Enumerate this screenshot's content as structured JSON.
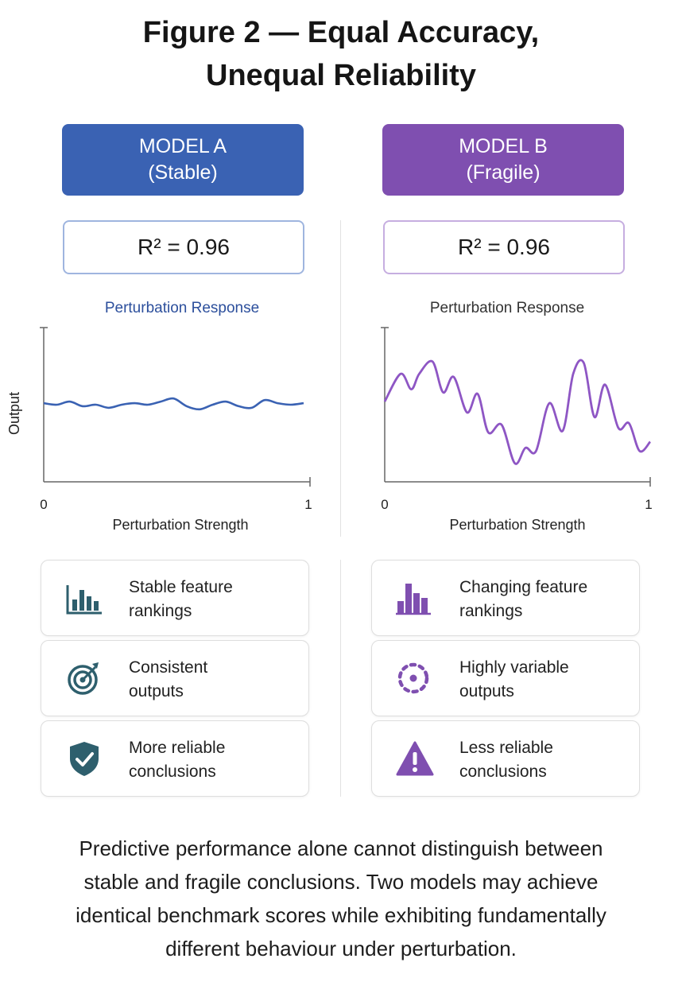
{
  "title": {
    "line1": "Figure 2 — Equal Accuracy,",
    "line2": "Unequal Reliability"
  },
  "colors": {
    "model_a": "#3a62b3",
    "model_b": "#7f4fb0",
    "icon_a": "#2e5f6d",
    "icon_b": "#7f4fb0"
  },
  "model_a": {
    "header_line1": "MODEL A",
    "header_line2": "(Stable)",
    "score": "R² = 0.96",
    "features": [
      {
        "icon": "bar-chart-icon",
        "line1": "Stable feature",
        "line2": "rankings"
      },
      {
        "icon": "target-icon",
        "line1": "Consistent",
        "line2": "outputs"
      },
      {
        "icon": "shield-check-icon",
        "line1": "More reliable",
        "line2": "conclusions"
      }
    ]
  },
  "model_b": {
    "header_line1": "MODEL B",
    "header_line2": "(Fragile)",
    "score": "R² = 0.96",
    "features": [
      {
        "icon": "bar-chart-icon",
        "line1": "Changing feature",
        "line2": "rankings"
      },
      {
        "icon": "dotted-circle-icon",
        "line1": "Highly variable",
        "line2": "outputs"
      },
      {
        "icon": "warning-triangle-icon",
        "line1": "Less reliable",
        "line2": "conclusions"
      }
    ]
  },
  "chart_data": [
    {
      "type": "line",
      "title": "Perturbation Response",
      "xlabel": "Perturbation Strength",
      "ylabel": "Output",
      "xlim": [
        0,
        1
      ],
      "ylim": [
        0,
        1
      ],
      "x_ticks": [
        "0",
        "1"
      ],
      "series": [
        {
          "x": [
            0,
            0.05,
            0.1,
            0.15,
            0.2,
            0.25,
            0.3,
            0.35,
            0.4,
            0.45,
            0.5,
            0.55,
            0.6,
            0.65,
            0.7,
            0.75,
            0.8,
            0.85,
            0.9,
            0.95,
            1.0
          ],
          "values": [
            0.51,
            0.5,
            0.52,
            0.49,
            0.5,
            0.48,
            0.5,
            0.51,
            0.5,
            0.52,
            0.54,
            0.49,
            0.47,
            0.5,
            0.52,
            0.49,
            0.48,
            0.53,
            0.51,
            0.5,
            0.51
          ]
        }
      ]
    },
    {
      "type": "line",
      "title": "Perturbation Response",
      "xlabel": "Perturbation Strength",
      "ylabel": "",
      "xlim": [
        0,
        1
      ],
      "ylim": [
        0,
        1
      ],
      "x_ticks": [
        "0",
        "1"
      ],
      "series": [
        {
          "x": [
            0,
            0.06,
            0.1,
            0.13,
            0.18,
            0.22,
            0.26,
            0.31,
            0.35,
            0.39,
            0.44,
            0.49,
            0.53,
            0.57,
            0.62,
            0.67,
            0.71,
            0.75,
            0.79,
            0.83,
            0.88,
            0.92,
            0.96,
            1.0
          ],
          "values": [
            0.52,
            0.7,
            0.6,
            0.7,
            0.78,
            0.58,
            0.68,
            0.45,
            0.57,
            0.32,
            0.37,
            0.12,
            0.22,
            0.2,
            0.51,
            0.33,
            0.7,
            0.77,
            0.42,
            0.63,
            0.35,
            0.38,
            0.2,
            0.26
          ]
        }
      ]
    }
  ],
  "caption": {
    "line1": "Predictive performance alone cannot distinguish between",
    "line2": "stable and fragile conclusions. Two models may achieve",
    "line3": "identical benchmark scores while exhibiting fundamentally",
    "line4": "different behaviour under perturbation."
  }
}
